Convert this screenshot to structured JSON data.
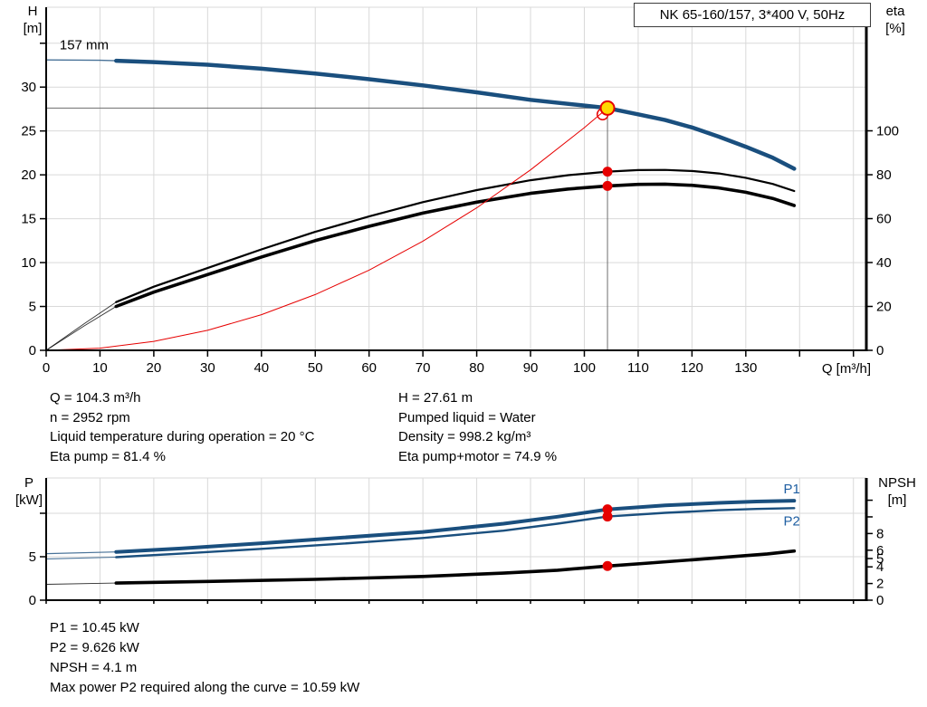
{
  "header": {
    "title": "NK 65-160/157, 3*400 V, 50Hz"
  },
  "colors": {
    "curve_blue": "#1a4f7e",
    "label_blue": "#1f5fa2",
    "red": "#e60000",
    "yellow": "#ffd800",
    "black": "#000000",
    "grid": "#d9d9d9",
    "crosshair": "#6e6e6e"
  },
  "info_top": {
    "left": [
      "Q = 104.3 m³/h",
      "n = 2952 rpm",
      "Liquid temperature during operation = 20 °C",
      "Eta pump = 81.4 %"
    ],
    "right": [
      "H = 27.61 m",
      "Pumped liquid = Water",
      "Density = 998.2 kg/m³",
      "Eta pump+motor = 74.9 %"
    ]
  },
  "info_bottom": [
    "P1 = 10.45 kW",
    "P2 = 9.626 kW",
    "NPSH = 4.1 m",
    "Max power P2 required along the curve = 10.59 kW"
  ],
  "chart_data": [
    {
      "type": "line",
      "title": "NK 65-160/157, 3*400 V, 50Hz",
      "axes": {
        "x": {
          "label": "Q [m³/h]",
          "min": 0,
          "max": 152.4,
          "ticks_labeled": [
            0,
            10,
            20,
            30,
            40,
            50,
            60,
            70,
            80,
            90,
            100,
            110,
            120,
            130
          ],
          "ticks_unlabeled": [
            140,
            150
          ]
        },
        "left": {
          "name": "H",
          "unit": "[m]",
          "min": 0,
          "max": 39.1,
          "ticks_labeled": [
            0,
            5,
            10,
            15,
            20,
            25,
            30
          ],
          "ticks_unlabeled": [
            35
          ]
        },
        "right": {
          "name": "eta",
          "unit": "[%]",
          "min": 0,
          "max": 156.3,
          "ticks_labeled": [
            0,
            20,
            40,
            60,
            80,
            100
          ],
          "ticks_unlabeled": []
        }
      },
      "crosshair": {
        "q": 104.3,
        "h": 27.61
      },
      "series": [
        {
          "name": "pump-curve-157mm",
          "axis": "left",
          "color": "#1a4f7e",
          "width": 4.5,
          "thin_width": 1.4,
          "thin_until": 13,
          "points": [
            [
              0,
              33.1
            ],
            [
              10,
              33.05
            ],
            [
              13,
              33.0
            ],
            [
              20,
              32.85
            ],
            [
              30,
              32.55
            ],
            [
              40,
              32.1
            ],
            [
              50,
              31.55
            ],
            [
              60,
              30.9
            ],
            [
              70,
              30.2
            ],
            [
              80,
              29.4
            ],
            [
              90,
              28.55
            ],
            [
              100,
              27.9
            ],
            [
              104.3,
              27.61
            ],
            [
              110,
              26.9
            ],
            [
              115,
              26.25
            ],
            [
              120,
              25.4
            ],
            [
              125,
              24.35
            ],
            [
              130,
              23.2
            ],
            [
              135,
              21.95
            ],
            [
              139,
              20.7
            ]
          ]
        },
        {
          "name": "eta-pump-curve",
          "axis": "right",
          "color": "#000000",
          "width": 2.2,
          "thin_width": 0.9,
          "thin_until": 13,
          "points": [
            [
              0,
              0
            ],
            [
              7,
              12
            ],
            [
              13,
              22
            ],
            [
              20,
              29
            ],
            [
              30,
              37.5
            ],
            [
              40,
              46
            ],
            [
              50,
              54
            ],
            [
              60,
              61
            ],
            [
              70,
              67.5
            ],
            [
              80,
              73
            ],
            [
              90,
              77.5
            ],
            [
              97,
              79.8
            ],
            [
              104.3,
              81.4
            ],
            [
              110,
              82.1
            ],
            [
              115,
              82.2
            ],
            [
              120,
              81.7
            ],
            [
              125,
              80.6
            ],
            [
              130,
              78.6
            ],
            [
              135,
              75.8
            ],
            [
              139,
              72.6
            ]
          ]
        },
        {
          "name": "eta-pump-motor-curve",
          "axis": "right",
          "color": "#000000",
          "width": 3.6,
          "thin_width": 0.9,
          "thin_until": 13,
          "points": [
            [
              0,
              0
            ],
            [
              7,
              11
            ],
            [
              13,
              20
            ],
            [
              20,
              26.5
            ],
            [
              30,
              34.5
            ],
            [
              40,
              42.5
            ],
            [
              50,
              50
            ],
            [
              60,
              56.5
            ],
            [
              70,
              62.5
            ],
            [
              80,
              67.5
            ],
            [
              90,
              71.5
            ],
            [
              97,
              73.5
            ],
            [
              104.3,
              74.9
            ],
            [
              110,
              75.6
            ],
            [
              115,
              75.7
            ],
            [
              120,
              75.2
            ],
            [
              125,
              74
            ],
            [
              130,
              72
            ],
            [
              135,
              69.2
            ],
            [
              139,
              66
            ]
          ]
        },
        {
          "name": "system-curve",
          "axis": "left",
          "color": "#e60000",
          "width": 1,
          "thin_width": null,
          "thin_until": null,
          "points": [
            [
              0,
              0
            ],
            [
              10,
              0.25
            ],
            [
              20,
              1.02
            ],
            [
              30,
              2.28
            ],
            [
              40,
              4.06
            ],
            [
              50,
              6.35
            ],
            [
              60,
              9.14
            ],
            [
              70,
              12.44
            ],
            [
              80,
              16.24
            ],
            [
              90,
              20.56
            ],
            [
              100,
              25.38
            ],
            [
              104.3,
              27.61
            ]
          ]
        }
      ],
      "markers": [
        {
          "name": "requested-duty-point",
          "shape": "circle-open",
          "axis": "left",
          "q": 103.4,
          "v": 26.9,
          "r": 6,
          "color": "#e60000"
        },
        {
          "name": "operating-point",
          "shape": "circle",
          "axis": "left",
          "q": 104.3,
          "v": 27.61,
          "r": 7.5,
          "fill": "#ffd800",
          "stroke": "#e60000"
        },
        {
          "name": "eta-pump-point",
          "shape": "dot",
          "axis": "right",
          "q": 104.3,
          "v": 81.4,
          "r": 5.5,
          "fill": "#e60000"
        },
        {
          "name": "eta-pump-motor-point",
          "shape": "dot",
          "axis": "right",
          "q": 104.3,
          "v": 74.9,
          "r": 5.5,
          "fill": "#e60000"
        }
      ],
      "annotations": [
        {
          "name": "impeller-diameter-label",
          "text": "157 mm",
          "axis": "left",
          "q": 2.5,
          "v": 34.3,
          "color": "#000000"
        }
      ]
    },
    {
      "type": "line",
      "title": "",
      "axes": {
        "x": {
          "label": "",
          "min": 0,
          "max": 152.4,
          "ticks_labeled": [],
          "ticks_unlabeled": [
            0,
            10,
            20,
            30,
            40,
            50,
            60,
            70,
            80,
            90,
            100,
            110,
            120,
            130,
            140,
            150
          ]
        },
        "left": {
          "name": "P",
          "unit": "[kW]",
          "min": 0,
          "max": 14.06,
          "ticks_labeled": [
            0,
            5
          ],
          "ticks_unlabeled": [
            10
          ]
        },
        "right": {
          "name": "NPSH",
          "unit": "[m]",
          "min": 0,
          "max": 14.67,
          "ticks_labeled": [
            0,
            2,
            4,
            5,
            6,
            8
          ],
          "ticks_unlabeled": [
            10,
            12
          ]
        }
      },
      "crosshair": null,
      "series": [
        {
          "name": "p1-curve",
          "axis": "left",
          "color": "#1a4f7e",
          "width": 4,
          "thin_width": 1.2,
          "thin_until": 13,
          "points": [
            [
              0,
              5.35
            ],
            [
              13,
              5.55
            ],
            [
              25,
              5.95
            ],
            [
              40,
              6.55
            ],
            [
              55,
              7.2
            ],
            [
              70,
              7.85
            ],
            [
              85,
              8.8
            ],
            [
              95,
              9.6
            ],
            [
              104.3,
              10.45
            ],
            [
              115,
              10.9
            ],
            [
              125,
              11.2
            ],
            [
              132,
              11.35
            ],
            [
              139,
              11.45
            ]
          ]
        },
        {
          "name": "p2-curve",
          "axis": "left",
          "color": "#1a4f7e",
          "width": 2.4,
          "thin_width": 1.1,
          "thin_until": 13,
          "points": [
            [
              0,
              4.75
            ],
            [
              13,
              4.95
            ],
            [
              25,
              5.35
            ],
            [
              40,
              5.9
            ],
            [
              55,
              6.5
            ],
            [
              70,
              7.15
            ],
            [
              85,
              8.0
            ],
            [
              95,
              8.8
            ],
            [
              104.3,
              9.626
            ],
            [
              115,
              10.05
            ],
            [
              125,
              10.35
            ],
            [
              132,
              10.5
            ],
            [
              139,
              10.59
            ]
          ]
        },
        {
          "name": "npsh-curve",
          "axis": "right",
          "color": "#000000",
          "width": 3.6,
          "thin_width": 0.9,
          "thin_until": 13,
          "points": [
            [
              0,
              1.9
            ],
            [
              13,
              2.05
            ],
            [
              30,
              2.25
            ],
            [
              50,
              2.5
            ],
            [
              70,
              2.85
            ],
            [
              85,
              3.25
            ],
            [
              95,
              3.6
            ],
            [
              104.3,
              4.1
            ],
            [
              112,
              4.45
            ],
            [
              120,
              4.85
            ],
            [
              128,
              5.25
            ],
            [
              134,
              5.55
            ],
            [
              139,
              5.9
            ]
          ]
        }
      ],
      "markers": [
        {
          "name": "p1-point",
          "shape": "dot",
          "axis": "left",
          "q": 104.3,
          "v": 10.45,
          "r": 5.5,
          "fill": "#e60000"
        },
        {
          "name": "p2-point",
          "shape": "dot",
          "axis": "left",
          "q": 104.3,
          "v": 9.626,
          "r": 5.5,
          "fill": "#e60000"
        },
        {
          "name": "npsh-point",
          "shape": "dot",
          "axis": "right",
          "q": 104.3,
          "v": 4.1,
          "r": 5.5,
          "fill": "#e60000"
        }
      ],
      "annotations": [
        {
          "name": "p1-curve-label",
          "text": "P1",
          "axis": "left",
          "q": 137,
          "v": 12.3,
          "color": "#1f5fa2"
        },
        {
          "name": "p2-curve-label",
          "text": "P2",
          "axis": "left",
          "q": 137,
          "v": 8.6,
          "color": "#1f5fa2"
        }
      ]
    }
  ]
}
